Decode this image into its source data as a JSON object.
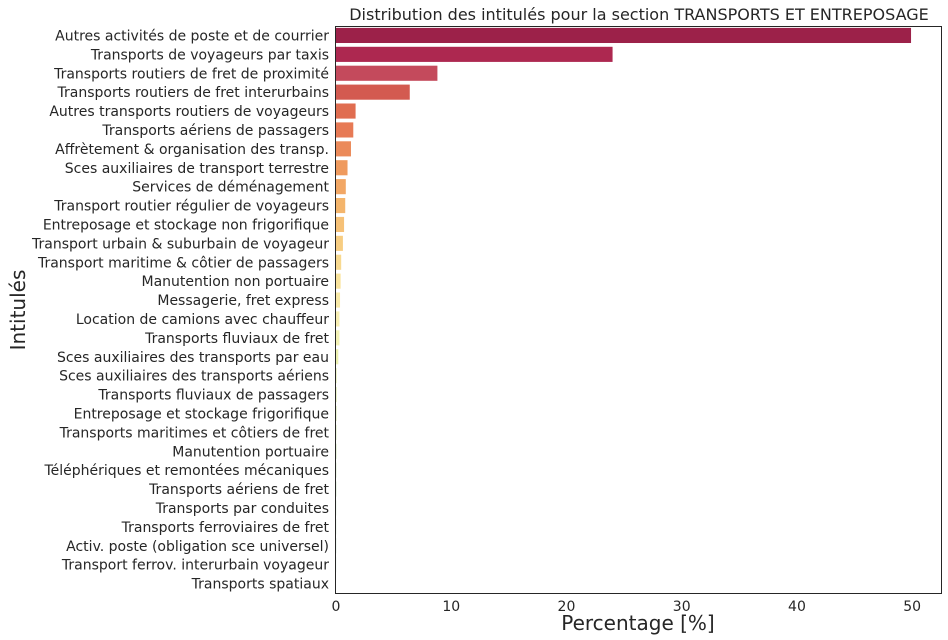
{
  "chart_data": {
    "type": "bar",
    "orientation": "horizontal",
    "title": "Distribution des intitulés pour la section TRANSPORTS ET ENTREPOSAGE",
    "xlabel": "Percentage [%]",
    "ylabel": "Intitulés",
    "xlim": [
      0,
      52.5
    ],
    "xticks": [
      "0",
      "10",
      "20",
      "30",
      "40",
      "50"
    ],
    "grid": false,
    "categories": [
      "Autres activités de poste et de courrier",
      "Transports de voyageurs par taxis",
      "Transports routiers de fret de proximité",
      "Transports routiers de fret interurbains",
      "Autres transports routiers de voyageurs",
      "Transports aériens de passagers",
      "Affrètement & organisation des transp.",
      "Sces auxiliaires de transport terrestre",
      "Services de déménagement",
      "Transport routier régulier de voyageurs",
      "Entreposage et stockage non frigorifique",
      "Transport urbain & suburbain de voyageur",
      "Transport maritime & côtier de passagers",
      "Manutention non portuaire",
      "Messagerie, fret express",
      "Location de camions avec chauffeur",
      "Transports fluviaux de fret",
      "Sces auxiliaires des transports par eau",
      "Sces auxiliaires des transports aériens",
      "Transports fluviaux de passagers",
      "Entreposage et stockage frigorifique",
      "Transports maritimes et côtiers de fret",
      "Manutention portuaire",
      "Téléphériques et remontées mécaniques",
      "Transports aériens de fret",
      "Transports par conduites",
      "Transports ferroviaires de fret",
      "Activ. poste (obligation sce universel)",
      "Transport ferrov. interurbain voyageur",
      "Transports spatiaux"
    ],
    "values": [
      49.9,
      24.0,
      8.8,
      6.4,
      1.7,
      1.5,
      1.3,
      1.0,
      0.85,
      0.8,
      0.7,
      0.6,
      0.45,
      0.4,
      0.35,
      0.3,
      0.3,
      0.2,
      0.05,
      0.05,
      0.04,
      0.03,
      0.03,
      0.02,
      0.02,
      0.01,
      0.01,
      0.01,
      0.005,
      0.0
    ],
    "colors": [
      "#9c2149",
      "#ad2850",
      "#c44a5c",
      "#d35a50",
      "#e06d50",
      "#e77a55",
      "#eb8a5a",
      "#ef9a5e",
      "#f2a765",
      "#f4b56c",
      "#f6c177",
      "#f7cd82",
      "#f8d98f",
      "#f9e39c",
      "#f9eaa8",
      "#f8efb3",
      "#f3f2b4",
      "#ecf1ae",
      "#e6efab",
      "#dfeca6",
      "#d6e8a4",
      "#cde5a2",
      "#c3e1a0",
      "#b9dda0",
      "#aed9a0",
      "#a3d4a1",
      "#98cfa2",
      "#8dcaa3",
      "#82c4a4",
      "#78bfa5"
    ]
  }
}
